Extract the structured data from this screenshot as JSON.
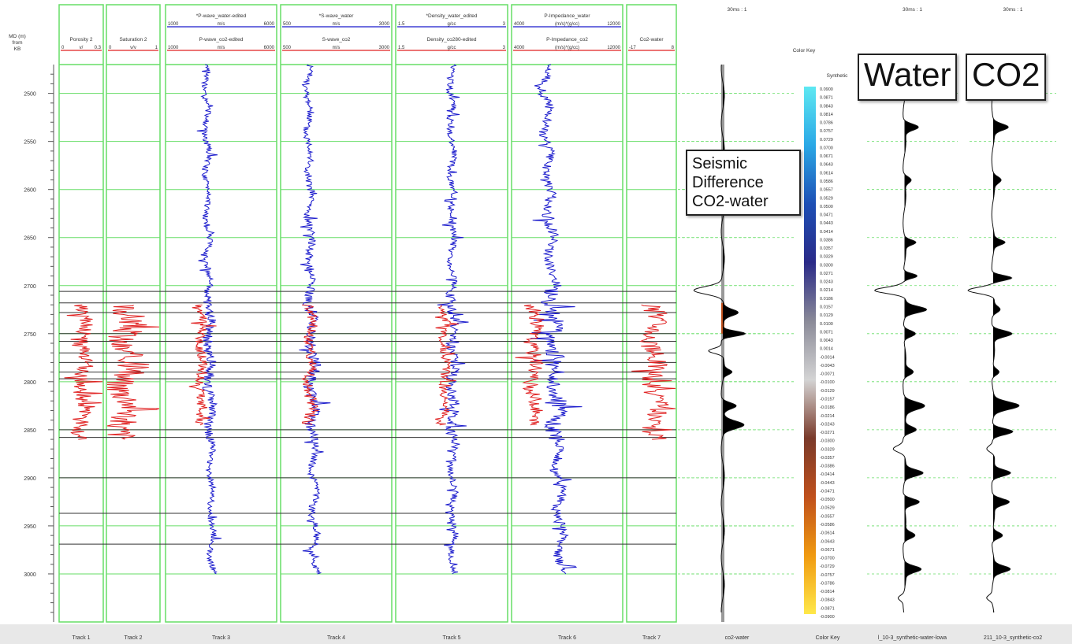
{
  "colors": {
    "water": "#1a1acc",
    "co2": "#e02020",
    "grid": "#66dd66",
    "marker": "#333333",
    "fill": "#000000"
  },
  "depth_header": [
    "MD (m)",
    "from",
    "KB"
  ],
  "depth_ticks": [
    2500,
    2550,
    2600,
    2650,
    2700,
    2750,
    2800,
    2850,
    2900,
    2950,
    3000
  ],
  "tracks": [
    {
      "footer": "Track 1",
      "top": {
        "name": "Porosity 2",
        "min": "0",
        "unit": "v/",
        "max": "0.3"
      }
    },
    {
      "footer": "Track 2",
      "top": {
        "name": "Saturation 2",
        "min": "0",
        "unit": "v/v",
        "max": "1"
      }
    },
    {
      "footer": "Track 3",
      "top": {
        "name": "*P-wave_water-edited",
        "min": "1000",
        "unit": "m/s",
        "max": "6000"
      },
      "bottom": {
        "name": "P-wave_co2-edited",
        "min": "1000",
        "unit": "m/s",
        "max": "6000"
      }
    },
    {
      "footer": "Track 4",
      "top": {
        "name": "*S-wave_water",
        "min": "500",
        "unit": "m/s",
        "max": "3000"
      },
      "bottom": {
        "name": "S-wave_co2",
        "min": "500",
        "unit": "m/s",
        "max": "3000"
      }
    },
    {
      "footer": "Track 5",
      "top": {
        "name": "*Density_water_edited",
        "min": "1.5",
        "unit": "g/cc",
        "max": "3"
      },
      "bottom": {
        "name": "Density_co280-edited",
        "min": "1.5",
        "unit": "g/cc",
        "max": "3"
      }
    },
    {
      "footer": "Track 6",
      "top": {
        "name": "P-Impedance_water",
        "min": "4000",
        "unit": "(m/s)*(g/cc)",
        "max": "12000"
      },
      "bottom": {
        "name": "P-Impedance_co2",
        "min": "4000",
        "unit": "(m/s)*(g/cc)",
        "max": "12000"
      }
    },
    {
      "footer": "Track 7",
      "top": {
        "name": "Co2-water",
        "min": "-17",
        "unit": "",
        "max": "8"
      }
    }
  ],
  "seismic_panels": [
    {
      "id": "diff",
      "scale": "30ms : 1",
      "footer": "co2-water"
    },
    {
      "id": "water",
      "scale": "30ms : 1",
      "footer": "l_10-3_synthetic-water-lowa"
    },
    {
      "id": "co2",
      "scale": "30ms : 1",
      "footer": "211_10-3_synthetic-co2"
    }
  ],
  "color_key": {
    "header": "Color Key",
    "title": "Synthetic",
    "footer": "Color Key",
    "values": [
      "0.0900",
      "0.0871",
      "0.0843",
      "0.0814",
      "0.0786",
      "0.0757",
      "0.0729",
      "0.0700",
      "0.0671",
      "0.0643",
      "0.0614",
      "0.0586",
      "0.0557",
      "0.0529",
      "0.0500",
      "0.0471",
      "0.0443",
      "0.0414",
      "0.0386",
      "0.0357",
      "0.0329",
      "0.0300",
      "0.0271",
      "0.0243",
      "0.0214",
      "0.0186",
      "0.0157",
      "0.0129",
      "0.0100",
      "0.0071",
      "0.0043",
      "0.0014",
      "-0.0014",
      "-0.0043",
      "-0.0071",
      "-0.0100",
      "-0.0129",
      "-0.0157",
      "-0.0186",
      "-0.0214",
      "-0.0243",
      "-0.0271",
      "-0.0300",
      "-0.0329",
      "-0.0357",
      "-0.0386",
      "-0.0414",
      "-0.0443",
      "-0.0471",
      "-0.0500",
      "-0.0529",
      "-0.0557",
      "-0.0586",
      "-0.0614",
      "-0.0643",
      "-0.0671",
      "-0.0700",
      "-0.0729",
      "-0.0757",
      "-0.0786",
      "-0.0814",
      "-0.0843",
      "-0.0871",
      "-0.0900"
    ],
    "gradient": [
      "#5ee8f2",
      "#2aa8e6",
      "#1d4fb5",
      "#2a2a88",
      "#8a8a98",
      "#d4d4d4",
      "#7a3a2a",
      "#c0501c",
      "#f09a10",
      "#ffe84a"
    ]
  },
  "callouts": {
    "seismic": [
      "Seismic",
      "Difference",
      "CO2-water"
    ],
    "water": "Water",
    "co2": "CO2"
  },
  "chart_data": {
    "type": "line",
    "y_axis": {
      "label": [
        "MD (m)",
        "from",
        "KB"
      ],
      "range": [
        2470,
        3050
      ],
      "reversed": true,
      "ticks": [
        2500,
        2550,
        2600,
        2650,
        2700,
        2750,
        2800,
        2850,
        2900,
        2950,
        3000
      ]
    },
    "co2_zone": [
      2705,
      2860
    ],
    "formation_markers": [
      2706,
      2718,
      2728,
      2750,
      2758,
      2770,
      2780,
      2790,
      2797,
      2850,
      2858,
      2900,
      2937,
      2969
    ],
    "logs": [
      {
        "track": 1,
        "name": "Porosity 2",
        "x_range": [
          0,
          0.3
        ],
        "series": [
          {
            "name": "Porosity 2",
            "color": "#e02020",
            "depth_range": [
              2720,
              2860
            ],
            "base": 0.16,
            "amp": 0.1
          }
        ]
      },
      {
        "track": 2,
        "name": "Saturation 2",
        "x_range": [
          0,
          1
        ],
        "series": [
          {
            "name": "Saturation 2",
            "color": "#e02020",
            "depth_range": [
              2720,
              2860
            ],
            "base": 0.38,
            "amp": 0.5
          }
        ]
      },
      {
        "track": 3,
        "x_range": [
          1000,
          6000
        ],
        "series": [
          {
            "name": "*P-wave_water-edited",
            "color": "#1a1acc",
            "depth_range": [
              2470,
              3000
            ],
            "base": 2800,
            "amp": 380,
            "trend": 300
          },
          {
            "name": "P-wave_co2-edited",
            "color": "#e02020",
            "depth_range": [
              2720,
              2845
            ],
            "base": 2600,
            "amp": 350
          }
        ]
      },
      {
        "track": 4,
        "x_range": [
          500,
          3000
        ],
        "series": [
          {
            "name": "*S-wave_water",
            "color": "#1a1acc",
            "depth_range": [
              2470,
              3000
            ],
            "base": 1100,
            "amp": 230,
            "trend": 180
          },
          {
            "name": "S-wave_co2",
            "color": "#e02020",
            "depth_range": [
              2720,
              2845
            ],
            "base": 1150,
            "amp": 220
          }
        ]
      },
      {
        "track": 5,
        "x_range": [
          1.5,
          3
        ],
        "series": [
          {
            "name": "*Density_water_edited",
            "color": "#1a1acc",
            "depth_range": [
              2470,
              3000
            ],
            "base": 2.25,
            "amp": 0.12,
            "trend": 0.02
          },
          {
            "name": "Density_co280-edited",
            "color": "#e02020",
            "depth_range": [
              2720,
              2845
            ],
            "base": 2.15,
            "amp": 0.1
          }
        ]
      },
      {
        "track": 6,
        "x_range": [
          4000,
          12000
        ],
        "series": [
          {
            "name": "P-Impedance_water",
            "color": "#1a1acc",
            "depth_range": [
              2470,
              3000
            ],
            "base": 6400,
            "amp": 1000,
            "trend": 1200
          },
          {
            "name": "P-Impedance_co2",
            "color": "#e02020",
            "depth_range": [
              2720,
              2845
            ],
            "base": 5600,
            "amp": 900
          }
        ]
      },
      {
        "track": 7,
        "name": "Co2-water",
        "x_range": [
          -17,
          8
        ],
        "series": [
          {
            "name": "Co2-water",
            "color": "#e02020",
            "depth_range": [
              2720,
              2860
            ],
            "base": -3,
            "amp": 9
          }
        ]
      }
    ],
    "synthetics": {
      "x_range": [
        -0.09,
        0.09
      ],
      "depth_range": [
        2470,
        3050
      ],
      "diff": [
        [
          2705,
          -0.07,
          12
        ],
        [
          2728,
          0.035,
          10
        ],
        [
          2750,
          0.06,
          8
        ],
        [
          2768,
          -0.035,
          8
        ],
        [
          2790,
          0.02,
          8
        ],
        [
          2825,
          0.035,
          10
        ],
        [
          2845,
          0.05,
          12
        ]
      ],
      "water": [
        [
          2485,
          0.018,
          8
        ],
        [
          2535,
          0.04,
          10
        ],
        [
          2590,
          0.02,
          10
        ],
        [
          2655,
          0.03,
          8
        ],
        [
          2690,
          0.04,
          8
        ],
        [
          2705,
          -0.085,
          10
        ],
        [
          2725,
          0.06,
          10
        ],
        [
          2750,
          0.035,
          10
        ],
        [
          2790,
          0.025,
          10
        ],
        [
          2825,
          0.055,
          12
        ],
        [
          2850,
          0.035,
          10
        ],
        [
          2870,
          -0.03,
          10
        ],
        [
          2895,
          0.05,
          10
        ],
        [
          2925,
          0.045,
          10
        ],
        [
          2960,
          0.03,
          10
        ],
        [
          2995,
          0.045,
          10
        ],
        [
          3025,
          -0.015,
          8
        ]
      ],
      "co2": [
        [
          2485,
          0.018,
          8
        ],
        [
          2535,
          0.04,
          10
        ],
        [
          2590,
          0.02,
          10
        ],
        [
          2655,
          0.03,
          8
        ],
        [
          2692,
          0.055,
          8
        ],
        [
          2705,
          -0.075,
          10
        ],
        [
          2725,
          0.02,
          10
        ],
        [
          2750,
          0.055,
          10
        ],
        [
          2790,
          0.02,
          10
        ],
        [
          2825,
          0.07,
          12
        ],
        [
          2852,
          0.06,
          10
        ],
        [
          2870,
          -0.02,
          10
        ],
        [
          2895,
          0.05,
          10
        ],
        [
          2925,
          0.045,
          10
        ],
        [
          2960,
          0.03,
          10
        ],
        [
          2995,
          0.045,
          10
        ],
        [
          3025,
          -0.015,
          8
        ]
      ]
    }
  }
}
